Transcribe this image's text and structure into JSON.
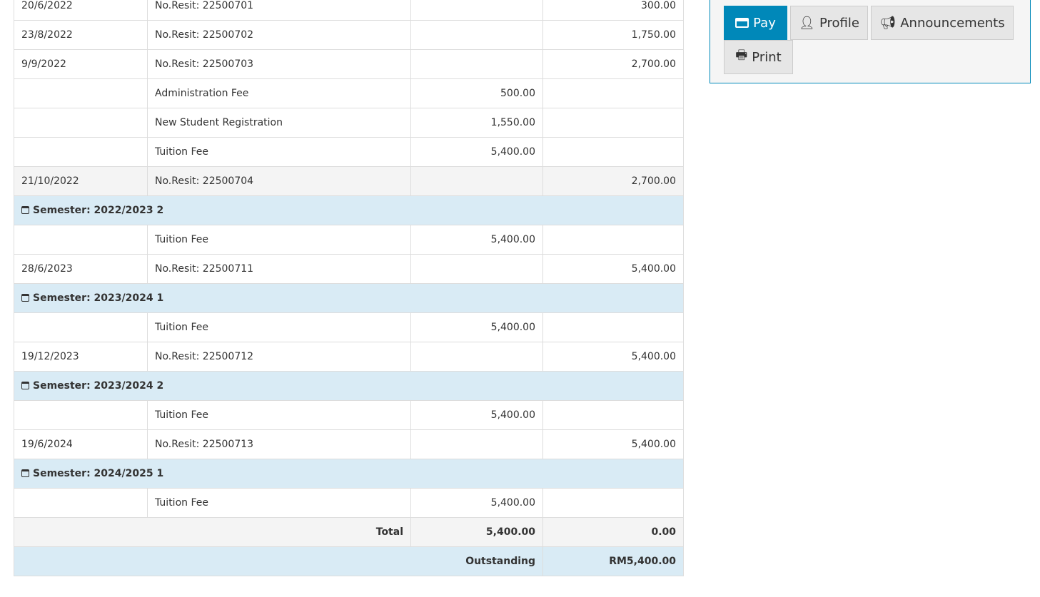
{
  "rows": [
    {
      "type": "row",
      "date": "20/6/2022",
      "desc": "No.Resit: 22500701",
      "debit": "",
      "credit": "300.00"
    },
    {
      "type": "row",
      "date": "23/8/2022",
      "desc": "No.Resit: 22500702",
      "debit": "",
      "credit": "1,750.00"
    },
    {
      "type": "row",
      "date": "9/9/2022",
      "desc": "No.Resit: 22500703",
      "debit": "",
      "credit": "2,700.00"
    },
    {
      "type": "row",
      "date": "",
      "desc": "Administration Fee",
      "debit": "500.00",
      "credit": ""
    },
    {
      "type": "row",
      "date": "",
      "desc": "New Student Registration",
      "debit": "1,550.00",
      "credit": ""
    },
    {
      "type": "row",
      "date": "",
      "desc": "Tuition Fee",
      "debit": "5,400.00",
      "credit": ""
    },
    {
      "type": "alt",
      "date": "21/10/2022",
      "desc": "No.Resit: 22500704",
      "debit": "",
      "credit": "2,700.00"
    },
    {
      "type": "sem",
      "label": "Semester: 2022/2023 2"
    },
    {
      "type": "row",
      "date": "",
      "desc": "Tuition Fee",
      "debit": "5,400.00",
      "credit": ""
    },
    {
      "type": "row",
      "date": "28/6/2023",
      "desc": "No.Resit: 22500711",
      "debit": "",
      "credit": "5,400.00"
    },
    {
      "type": "sem",
      "label": "Semester: 2023/2024 1"
    },
    {
      "type": "row",
      "date": "",
      "desc": "Tuition Fee",
      "debit": "5,400.00",
      "credit": ""
    },
    {
      "type": "row",
      "date": "19/12/2023",
      "desc": "No.Resit: 22500712",
      "debit": "",
      "credit": "5,400.00"
    },
    {
      "type": "sem",
      "label": "Semester: 2023/2024 2"
    },
    {
      "type": "row",
      "date": "",
      "desc": "Tuition Fee",
      "debit": "5,400.00",
      "credit": ""
    },
    {
      "type": "row",
      "date": "19/6/2024",
      "desc": "No.Resit: 22500713",
      "debit": "",
      "credit": "5,400.00"
    },
    {
      "type": "sem",
      "label": "Semester: 2024/2025 1"
    },
    {
      "type": "row",
      "date": "",
      "desc": "Tuition Fee",
      "debit": "5,400.00",
      "credit": ""
    }
  ],
  "total": {
    "label": "Total",
    "debit": "5,400.00",
    "credit": "0.00"
  },
  "outstanding": {
    "label": "Outstanding",
    "amount": "RM5,400.00"
  },
  "actions": {
    "pay": "Pay",
    "profile": "Profile",
    "announcements": "Announcements",
    "print": "Print"
  },
  "colors": {
    "primary": "#0088b9",
    "semester_row": "#d9ebf5"
  }
}
